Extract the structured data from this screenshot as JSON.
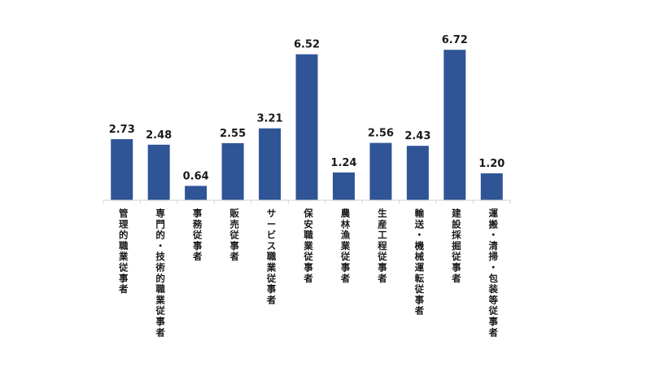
{
  "chart_data": {
    "type": "bar",
    "title": "",
    "xlabel": "",
    "ylabel": "",
    "ylim": [
      0,
      7.0
    ],
    "grid": false,
    "legend": "none",
    "bar_color": "#2f5597",
    "categories": [
      "管理的職業従事者",
      "専門的・技術的職業従事者",
      "事務従事者",
      "販売従事者",
      "サービス職業従事者",
      "保安職業従事者",
      "農林漁業従事者",
      "生産工程従事者",
      "輸送・機械運転従事者",
      "建設採掘従事者",
      "運搬・清掃・包装等従事者"
    ],
    "values": [
      2.73,
      2.48,
      0.64,
      2.55,
      3.21,
      6.52,
      1.24,
      2.56,
      2.43,
      6.72,
      1.2
    ],
    "value_labels": [
      "2.73",
      "2.48",
      "0.64",
      "2.55",
      "3.21",
      "6.52",
      "1.24",
      "2.56",
      "2.43",
      "6.72",
      "1.20"
    ]
  }
}
